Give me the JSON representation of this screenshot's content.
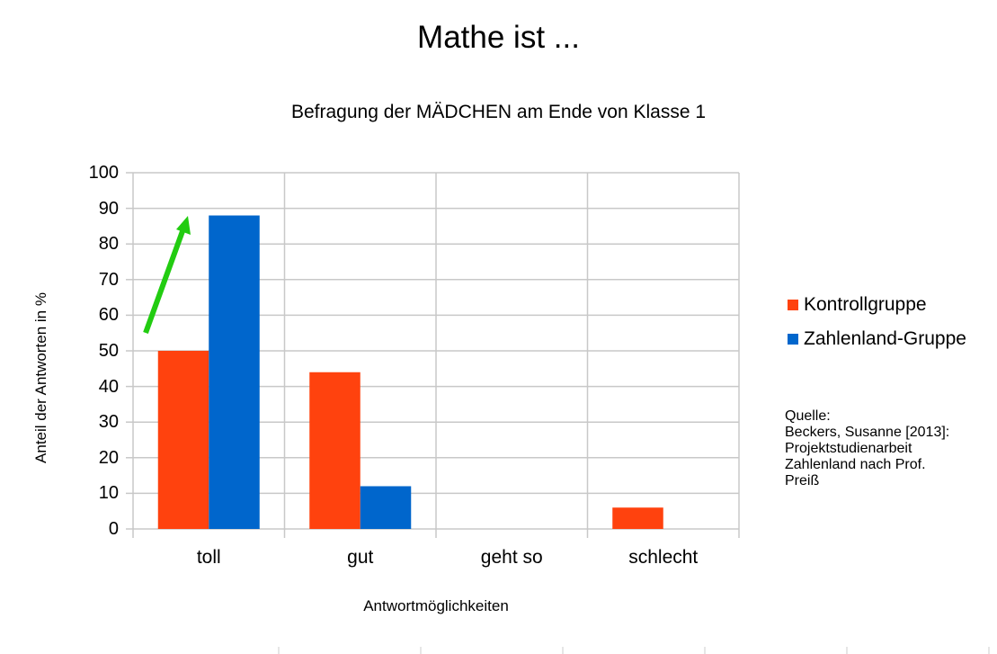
{
  "chart_data": {
    "type": "bar",
    "title": "Mathe ist ...",
    "subtitle": "Befragung der MÄDCHEN am Ende von Klasse 1",
    "xlabel": "Antwortmöglichkeiten",
    "ylabel": "Anteil der Antworten in %",
    "ylim": [
      0,
      100
    ],
    "yticks": [
      0,
      10,
      20,
      30,
      40,
      50,
      60,
      70,
      80,
      90,
      100
    ],
    "grid": true,
    "legend_position": "right",
    "categories": [
      "toll",
      "gut",
      "geht so",
      "schlecht"
    ],
    "series": [
      {
        "name": "Kontrollgruppe",
        "color": "#ff420e",
        "values": [
          50,
          44,
          0,
          6
        ]
      },
      {
        "name": "Zahlenland-Gruppe",
        "color": "#0066cc",
        "values": [
          88,
          12,
          0,
          0
        ]
      }
    ],
    "annotations": [
      {
        "type": "arrow",
        "color": "#22cc11",
        "from_category": "toll",
        "from_value": 55,
        "to_value": 88,
        "description": "green upward arrow from Kontrollgruppe to Zahlenland-Gruppe bar"
      }
    ],
    "source_note": [
      "Quelle:",
      "Beckers, Susanne [2013]:",
      "Projektstudienarbeit",
      "Zahlenland nach Prof.",
      "Preiß"
    ]
  }
}
